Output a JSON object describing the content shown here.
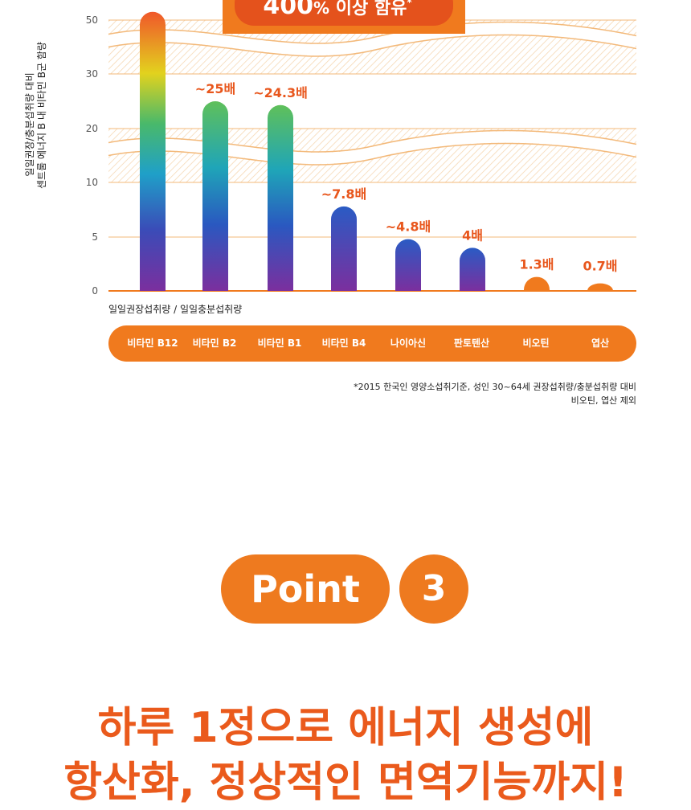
{
  "chart_data": {
    "type": "bar",
    "banner": {
      "big": "400",
      "unit": "%",
      "rest": " 이상 함유",
      "mark": "*"
    },
    "ylabel_lines": [
      "일일권장/충분섭취량 대비",
      "센트룸 에너지 B 내 비타민 B군 함량"
    ],
    "yticks": [
      "0",
      "5",
      "10",
      "20",
      "30",
      "50"
    ],
    "categories": [
      "비타민 B12",
      "비타민 B2",
      "비타민 B1",
      "비타민 B4",
      "나이아신",
      "판토텐산",
      "비오틴",
      "엽산"
    ],
    "values": [
      56,
      25,
      24.3,
      7.8,
      4.8,
      4,
      1.3,
      0.7
    ],
    "value_labels": [
      "",
      "~25배",
      "~24.3배",
      "~7.8배",
      "~4.8배",
      "4배",
      "1.3배",
      "0.7배"
    ],
    "x_note": "일일권장섭취량 / 일일충분섭취량",
    "axis_break": "between 10–20 and 30–50",
    "colors": {
      "orange": "#f07a1e",
      "label": "#e8561c",
      "gridline": "#f3b97a"
    }
  },
  "footnote": {
    "line1": "*2015 한국인 영양소섭취기준, 성인 30~64세 권장섭취량/충분섭취량 대비",
    "line2": "비오틴, 엽산 제외"
  },
  "point": {
    "label": "Point",
    "number": "3"
  },
  "headline": {
    "line1": "하루 1정으로 에너지 생성에",
    "line2": "항산화, 정상적인 면역기능까지!"
  }
}
